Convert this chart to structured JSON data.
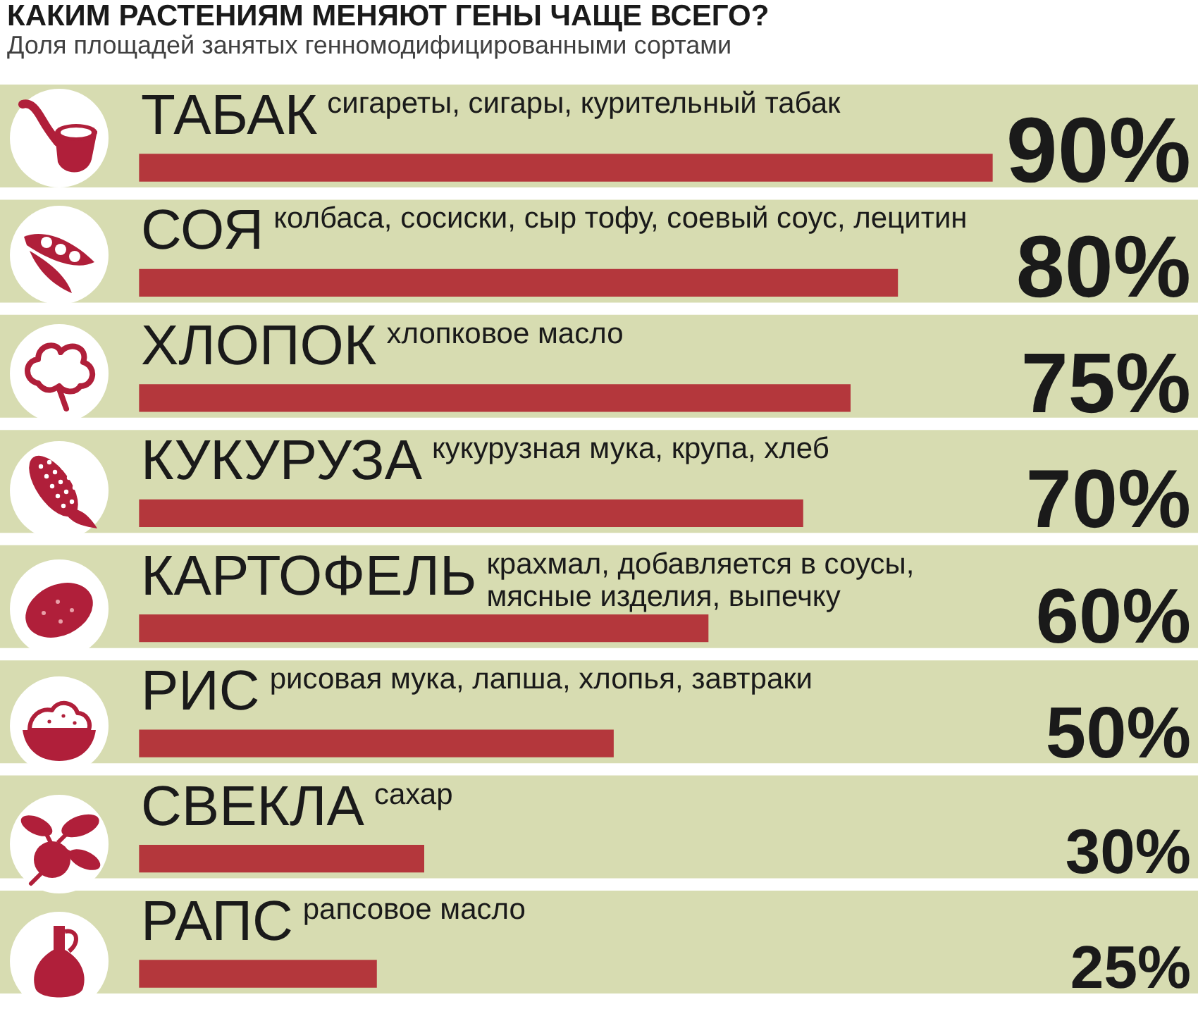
{
  "chart_data": {
    "type": "bar",
    "orientation": "horizontal",
    "title": "КАКИМ РАСТЕНИЯМ МЕНЯЮТ ГЕНЫ ЧАЩЕ ВСЕГО?",
    "subtitle": "Доля площадей занятых генномодифицированными сортами",
    "categories": [
      "ТАБАК",
      "СОЯ",
      "ХЛОПОК",
      "КУКУРУЗА",
      "КАРТОФЕЛЬ",
      "РИС",
      "СВЕКЛА",
      "РАПС"
    ],
    "values": [
      90,
      80,
      75,
      70,
      60,
      50,
      30,
      25
    ],
    "value_labels": [
      "90%",
      "80%",
      "75%",
      "70%",
      "60%",
      "50%",
      "30%",
      "25%"
    ],
    "color": "#b4373c",
    "tick_labels": "y",
    "annotations": [
      "сигареты, сигары, курительный табак",
      "колбаса, сосиски, сыр тофу, соевый соус, лецитин",
      "хлопковое масло",
      "кукурузная мука, крупа, хлеб",
      "крахмал, добавляется в соусы,\nмясные изделия, выпечку",
      "рисовая мука, лапша, хлопья, завтраки",
      "сахар",
      "рапсовое масло"
    ]
  }
}
